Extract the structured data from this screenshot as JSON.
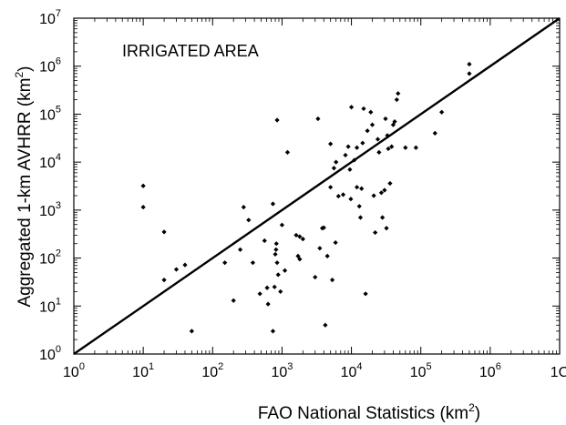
{
  "chart_data": {
    "type": "scatter",
    "title": "",
    "annotation": "IRRIGATED AREA",
    "xlabel": {
      "text": "FAO National Statistics (km",
      "sup": "2",
      "end": ")"
    },
    "ylabel": {
      "text": "Aggregated 1-km AVHRR (km",
      "sup": "2",
      "end": ")"
    },
    "x_scale": "log",
    "y_scale": "log",
    "xlim": [
      1,
      10000000
    ],
    "ylim": [
      1,
      10000000
    ],
    "x_ticks": [
      {
        "base": "10",
        "exp": "0"
      },
      {
        "base": "10",
        "exp": "1"
      },
      {
        "base": "10",
        "exp": "2"
      },
      {
        "base": "10",
        "exp": "3"
      },
      {
        "base": "10",
        "exp": "4"
      },
      {
        "base": "10",
        "exp": "5"
      },
      {
        "base": "10",
        "exp": "6"
      },
      {
        "base": "1C",
        "exp": ""
      }
    ],
    "y_ticks": [
      {
        "base": "10",
        "exp": "0"
      },
      {
        "base": "10",
        "exp": "1"
      },
      {
        "base": "10",
        "exp": "2"
      },
      {
        "base": "10",
        "exp": "3"
      },
      {
        "base": "10",
        "exp": "4"
      },
      {
        "base": "10",
        "exp": "5"
      },
      {
        "base": "10",
        "exp": "6"
      },
      {
        "base": "10",
        "exp": "7"
      }
    ],
    "reference_line": {
      "type": "1:1",
      "x": [
        1,
        10000000
      ],
      "y": [
        1,
        10000000
      ]
    },
    "grid": false,
    "legend": "none",
    "points": [
      {
        "x": 10,
        "y": 3200
      },
      {
        "x": 10,
        "y": 1150
      },
      {
        "x": 20,
        "y": 350
      },
      {
        "x": 20,
        "y": 35
      },
      {
        "x": 30,
        "y": 58
      },
      {
        "x": 40,
        "y": 72
      },
      {
        "x": 50,
        "y": 3
      },
      {
        "x": 150,
        "y": 80
      },
      {
        "x": 200,
        "y": 13
      },
      {
        "x": 250,
        "y": 150
      },
      {
        "x": 280,
        "y": 1150
      },
      {
        "x": 330,
        "y": 620
      },
      {
        "x": 380,
        "y": 80
      },
      {
        "x": 480,
        "y": 18
      },
      {
        "x": 560,
        "y": 230
      },
      {
        "x": 610,
        "y": 24
      },
      {
        "x": 630,
        "y": 11
      },
      {
        "x": 740,
        "y": 3
      },
      {
        "x": 740,
        "y": 1350
      },
      {
        "x": 780,
        "y": 25
      },
      {
        "x": 800,
        "y": 120
      },
      {
        "x": 820,
        "y": 150
      },
      {
        "x": 830,
        "y": 200
      },
      {
        "x": 850,
        "y": 75000
      },
      {
        "x": 850,
        "y": 80
      },
      {
        "x": 880,
        "y": 45
      },
      {
        "x": 950,
        "y": 20
      },
      {
        "x": 1000,
        "y": 490
      },
      {
        "x": 1100,
        "y": 55
      },
      {
        "x": 1200,
        "y": 16000
      },
      {
        "x": 1600,
        "y": 300
      },
      {
        "x": 1700,
        "y": 110
      },
      {
        "x": 1800,
        "y": 280
      },
      {
        "x": 1800,
        "y": 95
      },
      {
        "x": 2000,
        "y": 250
      },
      {
        "x": 3000,
        "y": 40
      },
      {
        "x": 3300,
        "y": 80000
      },
      {
        "x": 3500,
        "y": 160
      },
      {
        "x": 3800,
        "y": 420
      },
      {
        "x": 4000,
        "y": 430
      },
      {
        "x": 4200,
        "y": 4
      },
      {
        "x": 4500,
        "y": 110
      },
      {
        "x": 5000,
        "y": 3000
      },
      {
        "x": 5000,
        "y": 24000
      },
      {
        "x": 5300,
        "y": 35
      },
      {
        "x": 5600,
        "y": 7500
      },
      {
        "x": 5900,
        "y": 210
      },
      {
        "x": 6000,
        "y": 10000
      },
      {
        "x": 6500,
        "y": 1950
      },
      {
        "x": 7600,
        "y": 2100
      },
      {
        "x": 8200,
        "y": 14000
      },
      {
        "x": 9000,
        "y": 21000
      },
      {
        "x": 9500,
        "y": 7000
      },
      {
        "x": 9800,
        "y": 1700
      },
      {
        "x": 10000,
        "y": 140000
      },
      {
        "x": 11000,
        "y": 11000
      },
      {
        "x": 12000,
        "y": 20000
      },
      {
        "x": 12000,
        "y": 3000
      },
      {
        "x": 13000,
        "y": 1200
      },
      {
        "x": 13500,
        "y": 700
      },
      {
        "x": 14000,
        "y": 2800
      },
      {
        "x": 14500,
        "y": 25000
      },
      {
        "x": 15000,
        "y": 130000
      },
      {
        "x": 16000,
        "y": 18
      },
      {
        "x": 17000,
        "y": 45000
      },
      {
        "x": 19000,
        "y": 110000
      },
      {
        "x": 20000,
        "y": 60000
      },
      {
        "x": 21000,
        "y": 2000
      },
      {
        "x": 22000,
        "y": 340
      },
      {
        "x": 24000,
        "y": 30000
      },
      {
        "x": 25000,
        "y": 16000
      },
      {
        "x": 27000,
        "y": 2300
      },
      {
        "x": 28000,
        "y": 700
      },
      {
        "x": 30000,
        "y": 2600
      },
      {
        "x": 31000,
        "y": 80000
      },
      {
        "x": 32000,
        "y": 420
      },
      {
        "x": 33000,
        "y": 36000
      },
      {
        "x": 34000,
        "y": 19000
      },
      {
        "x": 36000,
        "y": 3600
      },
      {
        "x": 38000,
        "y": 21000
      },
      {
        "x": 40000,
        "y": 60000
      },
      {
        "x": 42000,
        "y": 70000
      },
      {
        "x": 45000,
        "y": 200000
      },
      {
        "x": 47000,
        "y": 270000
      },
      {
        "x": 60000,
        "y": 20000
      },
      {
        "x": 85000,
        "y": 20000
      },
      {
        "x": 160000,
        "y": 40000
      },
      {
        "x": 200000,
        "y": 110000
      },
      {
        "x": 500000,
        "y": 700000
      },
      {
        "x": 500000,
        "y": 1100000
      }
    ]
  }
}
